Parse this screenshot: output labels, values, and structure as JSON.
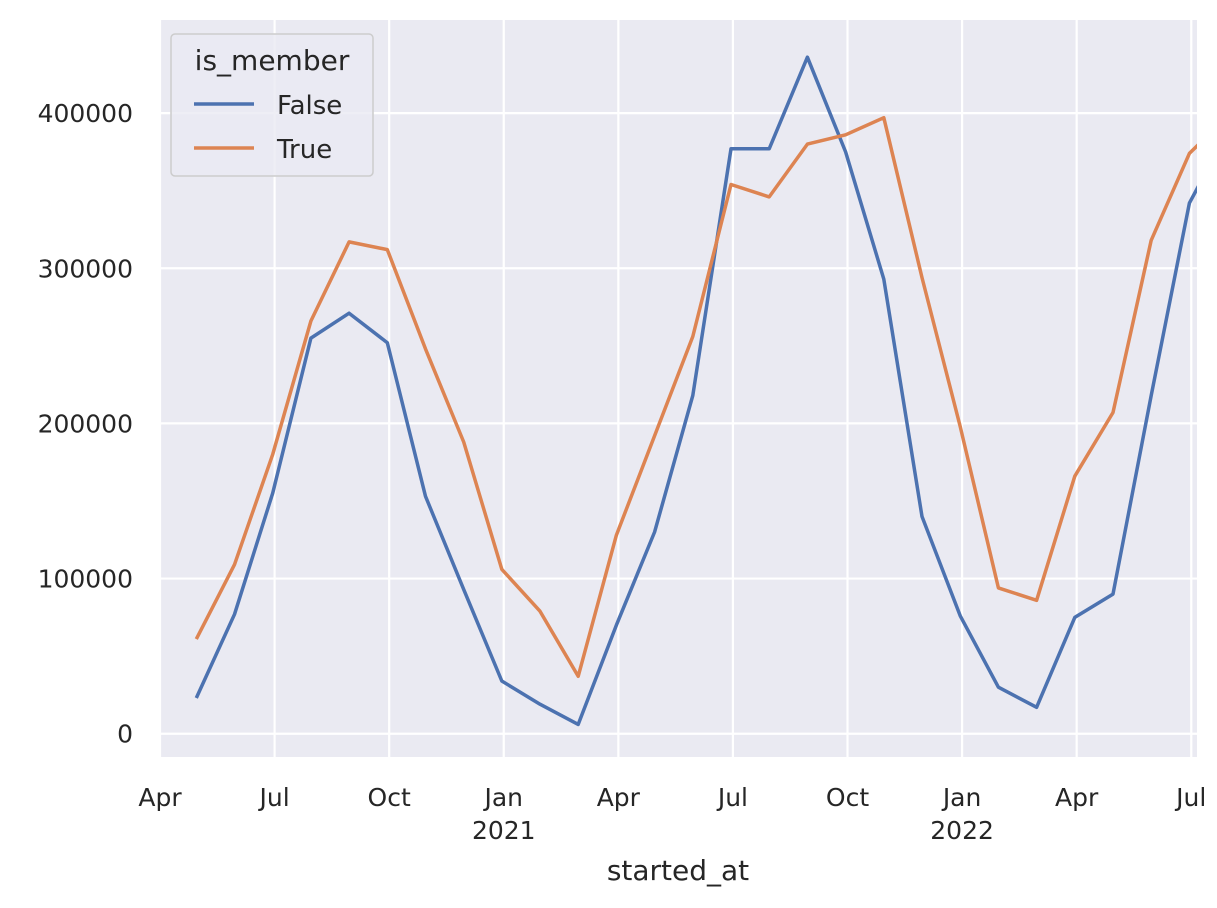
{
  "chart_data": {
    "type": "line",
    "xlabel": "started_at",
    "ylabel": "",
    "x": [
      "2020-04",
      "2020-05",
      "2020-06",
      "2020-07",
      "2020-08",
      "2020-09",
      "2020-10",
      "2020-11",
      "2020-12",
      "2021-01",
      "2021-02",
      "2021-03",
      "2021-04",
      "2021-05",
      "2021-06",
      "2021-07",
      "2021-08",
      "2021-09",
      "2021-10",
      "2021-11",
      "2021-12",
      "2022-01",
      "2022-02",
      "2022-03",
      "2022-04",
      "2022-05",
      "2022-06",
      "2022-07"
    ],
    "xlim": [
      "2020-04",
      "2022-07"
    ],
    "ylim": [
      -15000,
      460000
    ],
    "yticks": [
      0,
      100000,
      200000,
      300000,
      400000
    ],
    "ytick_labels": [
      "0",
      "100000",
      "200000",
      "300000",
      "400000"
    ],
    "xticks": [
      {
        "x": "2020-04",
        "label": "Apr",
        "sublabel": ""
      },
      {
        "x": "2020-07",
        "label": "Jul",
        "sublabel": ""
      },
      {
        "x": "2020-10",
        "label": "Oct",
        "sublabel": ""
      },
      {
        "x": "2021-01",
        "label": "Jan",
        "sublabel": "2021"
      },
      {
        "x": "2021-04",
        "label": "Apr",
        "sublabel": ""
      },
      {
        "x": "2021-07",
        "label": "Jul",
        "sublabel": ""
      },
      {
        "x": "2021-10",
        "label": "Oct",
        "sublabel": ""
      },
      {
        "x": "2022-01",
        "label": "Jan",
        "sublabel": "2022"
      },
      {
        "x": "2022-04",
        "label": "Apr",
        "sublabel": ""
      },
      {
        "x": "2022-07",
        "label": "Jul",
        "sublabel": ""
      }
    ],
    "grid": true,
    "legend": {
      "title": "is_member",
      "placement": "top-left"
    },
    "series": [
      {
        "name": "False",
        "color": "#4c72b0",
        "values": [
          23000,
          77000,
          155000,
          255000,
          271000,
          252000,
          153000,
          93000,
          34000,
          19000,
          6000,
          70000,
          130000,
          218000,
          377000,
          377000,
          436000,
          375000,
          293000,
          140000,
          76000,
          30000,
          17000,
          75000,
          90000,
          218000,
          342000,
          388000
        ]
      },
      {
        "name": "True",
        "color": "#dd8452",
        "values": [
          61000,
          109000,
          180000,
          266000,
          317000,
          312000,
          248000,
          188000,
          106000,
          79000,
          37000,
          128000,
          192000,
          256000,
          354000,
          346000,
          380000,
          386000,
          397000,
          294000,
          198000,
          94000,
          86000,
          166000,
          207000,
          318000,
          374000,
          398000
        ]
      }
    ]
  }
}
